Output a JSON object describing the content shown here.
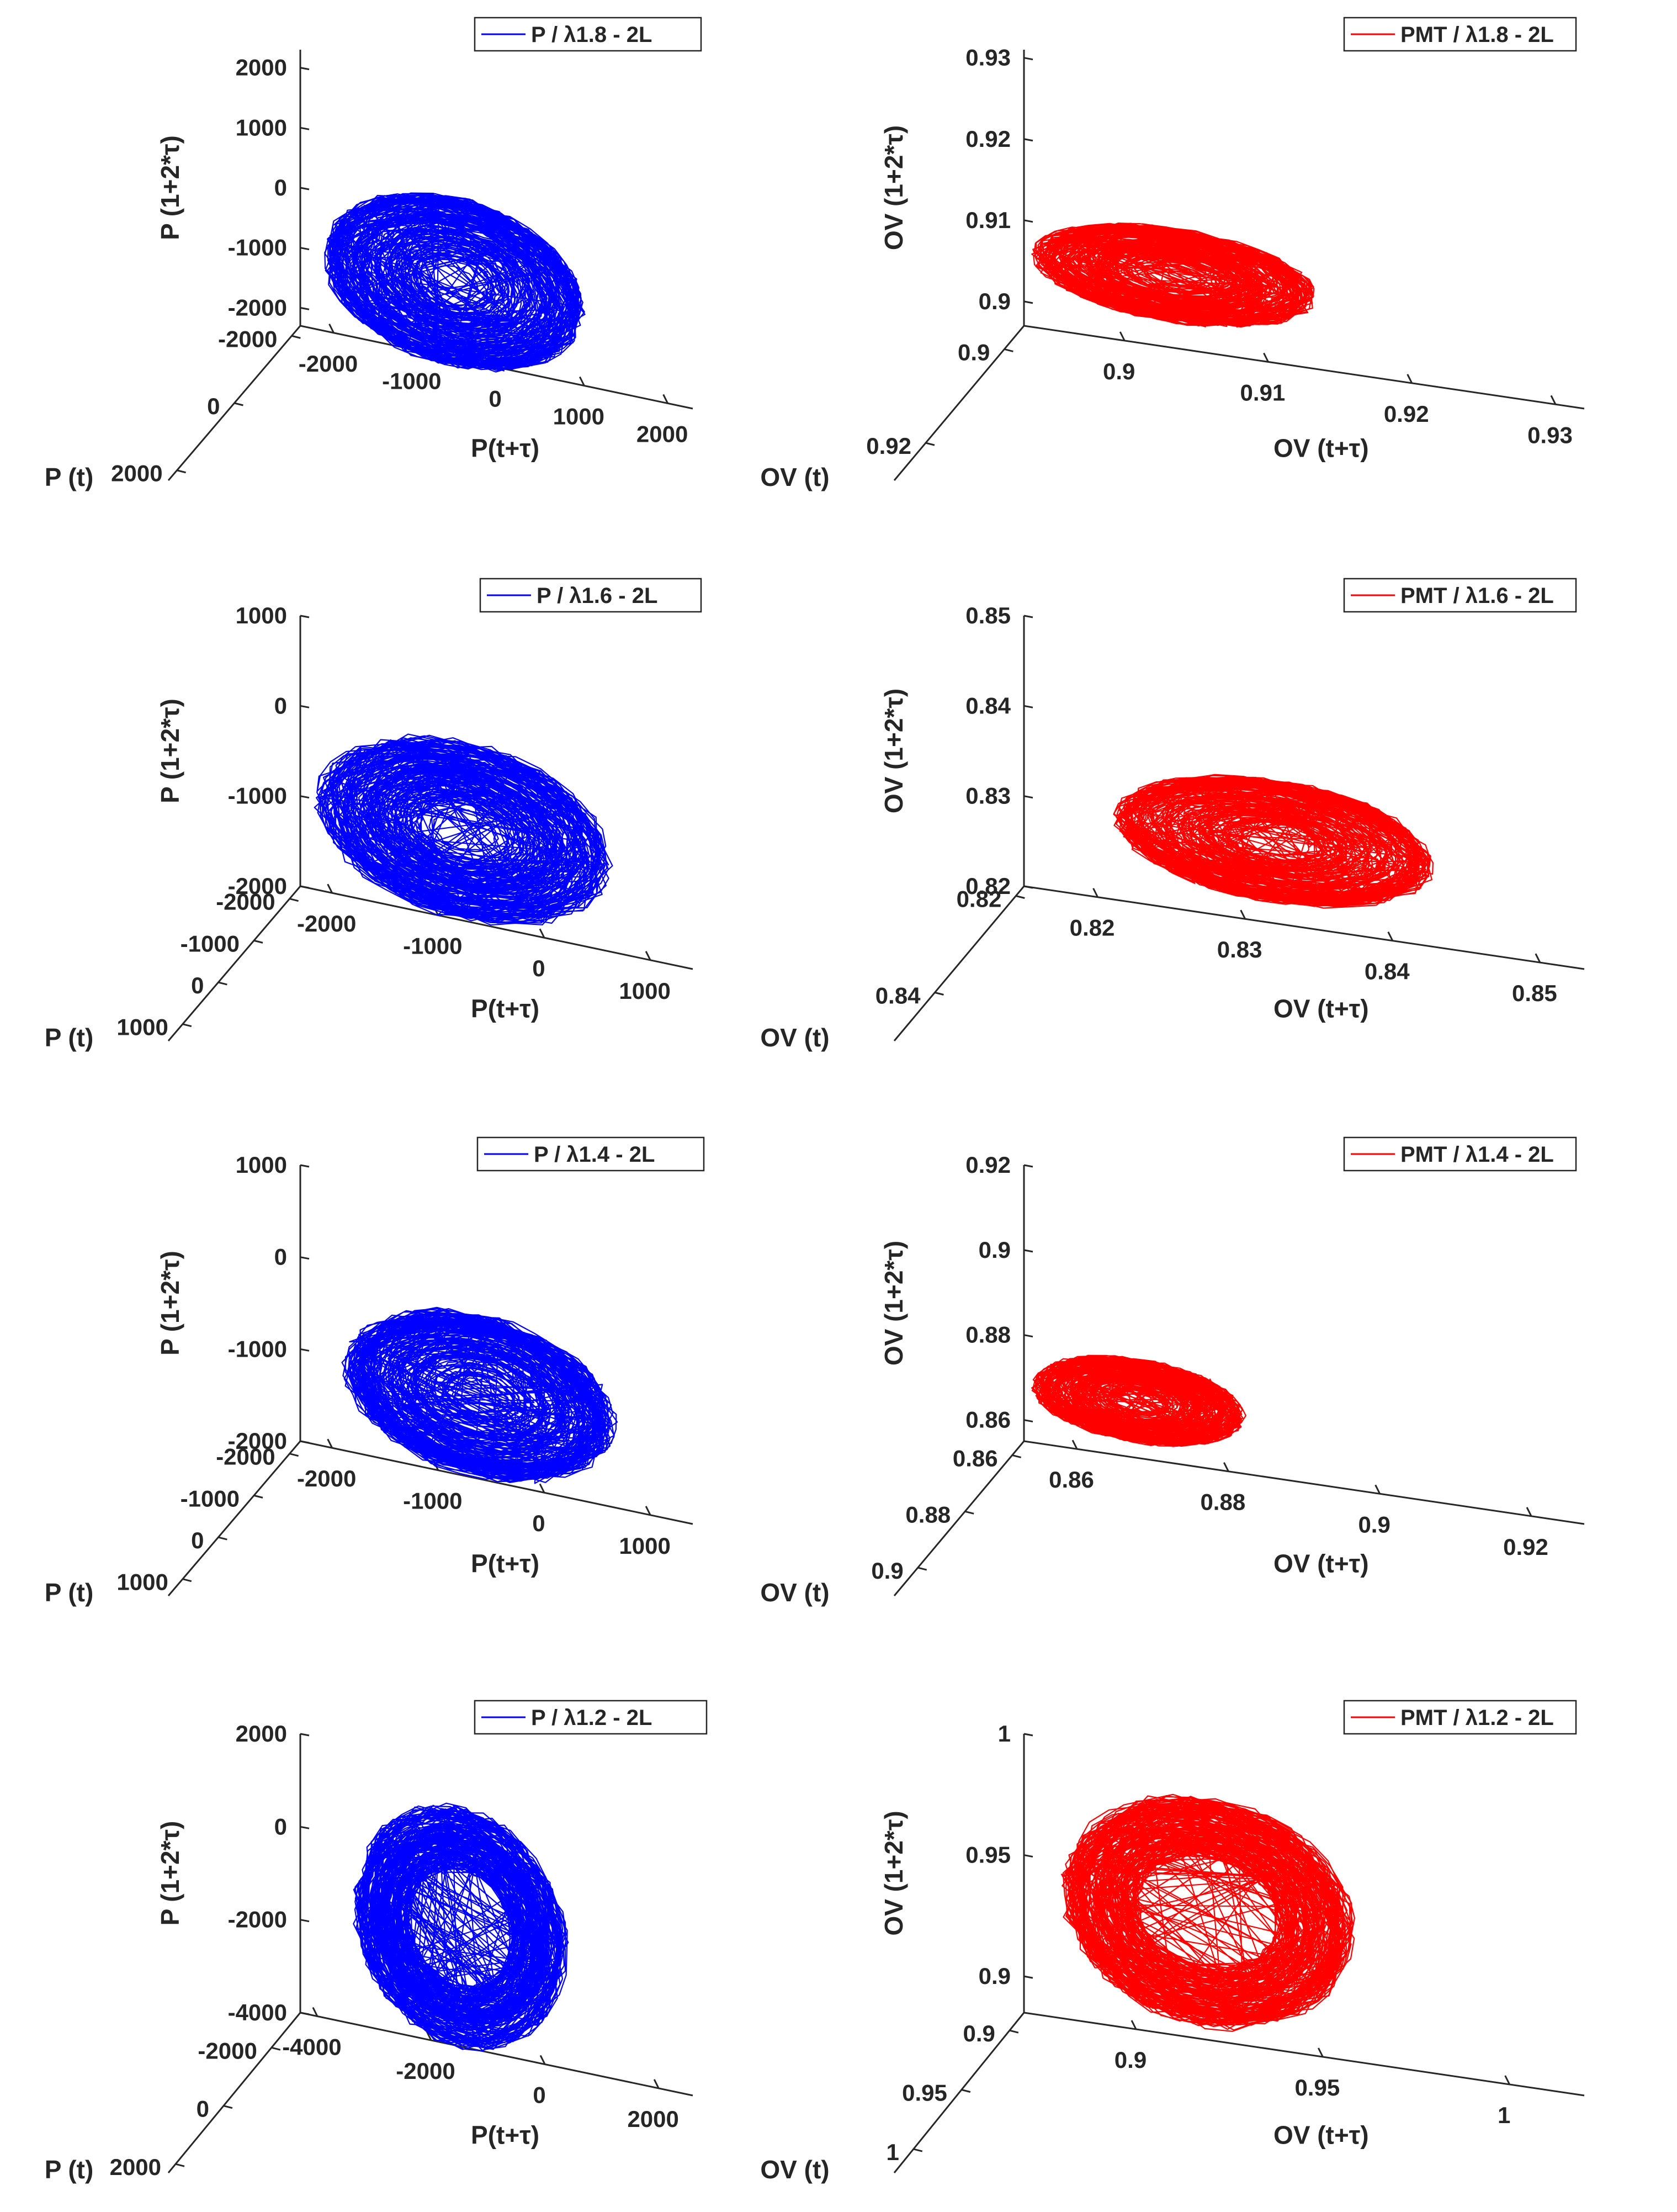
{
  "chart_data": [
    {
      "type": "line",
      "subtype": "3d-phase-space",
      "color": "#0000ff",
      "legend": "P / λ1.8 - 2L",
      "legend_placement": "top-right",
      "xlabel": "P(t+τ)",
      "ylabel": "P (t)",
      "zlabel": "P (1+2*τ)",
      "xticks": [
        "-2000",
        "-1000",
        "0",
        "1000",
        "2000"
      ],
      "yticks": [
        "-2000",
        "0",
        "2000"
      ],
      "zticks": [
        "-2000",
        "-1000",
        "0",
        "1000",
        "2000"
      ],
      "xlim": [
        -2400,
        2300
      ],
      "ylim": [
        -2300,
        2300
      ],
      "zlim": [
        -2300,
        2300
      ],
      "attractor": {
        "shape": "filled-ellipse",
        "center_x": -300,
        "center_z": -800,
        "radius_x": 1500,
        "radius_z": 1350,
        "tilt_deg": -12
      }
    },
    {
      "type": "line",
      "subtype": "3d-phase-space",
      "color": "#ff0000",
      "legend": "PMT / λ1.8 - 2L",
      "legend_placement": "top-right",
      "xlabel": "OV (t+τ)",
      "ylabel": "OV (t)",
      "zlabel": "OV (1+2*τ)",
      "xticks": [
        "0.9",
        "0.91",
        "0.92",
        "0.93"
      ],
      "yticks": [
        "0.9",
        "0.92"
      ],
      "zticks": [
        "0.9",
        "0.91",
        "0.92",
        "0.93"
      ],
      "xlim": [
        0.893,
        0.932
      ],
      "ylim": [
        0.895,
        0.928
      ],
      "zlim": [
        0.897,
        0.931
      ],
      "attractor": {
        "shape": "filled-ellipse",
        "center_x": 0.905,
        "center_z": 0.9075,
        "radius_x": 0.0095,
        "radius_z": 0.0055,
        "tilt_deg": -12
      }
    },
    {
      "type": "line",
      "subtype": "3d-phase-space",
      "color": "#0000ff",
      "legend": "P / λ1.6 - 2L",
      "legend_placement": "top-right",
      "xlabel": "P(t+τ)",
      "ylabel": "P (t)",
      "zlabel": "P (1+2*τ)",
      "xticks": [
        "-2000",
        "-1000",
        "0",
        "1000"
      ],
      "yticks": [
        "-2000",
        "-1000",
        "0",
        "1000"
      ],
      "zticks": [
        "-2000",
        "-1000",
        "0",
        "1000"
      ],
      "xlim": [
        -2300,
        1400
      ],
      "ylim": [
        -2300,
        1400
      ],
      "zlim": [
        -2000,
        1000
      ],
      "attractor": {
        "shape": "filled-ellipse",
        "center_x": -550,
        "center_z": -850,
        "radius_x": 1350,
        "radius_z": 950,
        "tilt_deg": -10
      }
    },
    {
      "type": "line",
      "subtype": "3d-phase-space",
      "color": "#ff0000",
      "legend": "PMT / λ1.6 - 2L",
      "legend_placement": "top-right",
      "xlabel": "OV (t+τ)",
      "ylabel": "OV (t)",
      "zlabel": "OV (1+2*τ)",
      "xticks": [
        "0.82",
        "0.83",
        "0.84",
        "0.85"
      ],
      "yticks": [
        "0.82",
        "0.84"
      ],
      "zticks": [
        "0.82",
        "0.83",
        "0.84",
        "0.85"
      ],
      "xlim": [
        0.815,
        0.853
      ],
      "ylim": [
        0.818,
        0.85
      ],
      "zlim": [
        0.82,
        0.85
      ],
      "attractor": {
        "shape": "filled-ellipse",
        "center_x": 0.8335,
        "center_z": 0.8305,
        "radius_x": 0.0105,
        "radius_z": 0.0065,
        "tilt_deg": -10
      }
    },
    {
      "type": "line",
      "subtype": "3d-phase-space",
      "color": "#0000ff",
      "legend": "P / λ1.4 - 2L",
      "legend_placement": "top-right",
      "xlabel": "P(t+τ)",
      "ylabel": "P (t)",
      "zlabel": "P (1+2*τ)",
      "xticks": [
        "-2000",
        "-1000",
        "0",
        "1000"
      ],
      "yticks": [
        "-2000",
        "-1000",
        "0",
        "1000"
      ],
      "zticks": [
        "-2000",
        "-1000",
        "0",
        "1000"
      ],
      "xlim": [
        -2300,
        1400
      ],
      "ylim": [
        -2300,
        1400
      ],
      "zlim": [
        -2000,
        1000
      ],
      "attractor": {
        "shape": "filled-ellipse",
        "center_x": -400,
        "center_z": -950,
        "radius_x": 1250,
        "radius_z": 850,
        "tilt_deg": -10
      }
    },
    {
      "type": "line",
      "subtype": "3d-phase-space",
      "color": "#ff0000",
      "legend": "PMT / λ1.4 - 2L",
      "legend_placement": "top-right",
      "xlabel": "OV (t+τ)",
      "ylabel": "OV (t)",
      "zlabel": "OV (1+2*τ)",
      "xticks": [
        "0.86",
        "0.88",
        "0.9",
        "0.92"
      ],
      "yticks": [
        "0.86",
        "0.88",
        "0.9"
      ],
      "zticks": [
        "0.86",
        "0.88",
        "0.9",
        "0.92"
      ],
      "xlim": [
        0.853,
        0.927
      ],
      "ylim": [
        0.855,
        0.91
      ],
      "zlim": [
        0.855,
        0.92
      ],
      "attractor": {
        "shape": "filled-ellipse",
        "center_x": 0.871,
        "center_z": 0.8715,
        "radius_x": 0.0135,
        "radius_z": 0.0095,
        "tilt_deg": -8
      }
    },
    {
      "type": "line",
      "subtype": "3d-phase-space",
      "color": "#0000ff",
      "legend": "P / λ1.2 - 2L",
      "legend_placement": "top-right",
      "xlabel": "P(t+τ)",
      "ylabel": "P (t)",
      "zlabel": "P (1+2*τ)",
      "xticks": [
        "-4000",
        "-2000",
        "0",
        "2000"
      ],
      "yticks": [
        "-2000",
        "0",
        "2000"
      ],
      "zticks": [
        "-4000",
        "-2000",
        "0",
        "2000"
      ],
      "xlim": [
        -4300,
        2600
      ],
      "ylim": [
        -3200,
        2300
      ],
      "zlim": [
        -4000,
        2000
      ],
      "attractor": {
        "shape": "ring",
        "center_x": -1100,
        "center_z": -1150,
        "radius_x": 1800,
        "radius_z": 2450,
        "hole_radius_x": 900,
        "hole_radius_z": 1350,
        "tilt_deg": 32
      }
    },
    {
      "type": "line",
      "subtype": "3d-phase-space",
      "color": "#ff0000",
      "legend": "PMT / λ1.2 - 2L",
      "legend_placement": "top-right",
      "xlabel": "OV (t+τ)",
      "ylabel": "OV (t)",
      "zlabel": "OV (1+2*τ)",
      "xticks": [
        "0.9",
        "0.95",
        "1"
      ],
      "yticks": [
        "0.9",
        "0.95",
        "1"
      ],
      "zticks": [
        "0.9",
        "0.95",
        "1"
      ],
      "xlim": [
        0.87,
        1.02
      ],
      "ylim": [
        0.885,
        1.02
      ],
      "zlim": [
        0.885,
        1.0
      ],
      "attractor": {
        "shape": "ring",
        "center_x": 0.925,
        "center_z": 0.9425,
        "radius_x": 0.038,
        "radius_z": 0.045,
        "hole_radius_x": 0.018,
        "hole_radius_z": 0.025,
        "tilt_deg": 30
      }
    }
  ]
}
